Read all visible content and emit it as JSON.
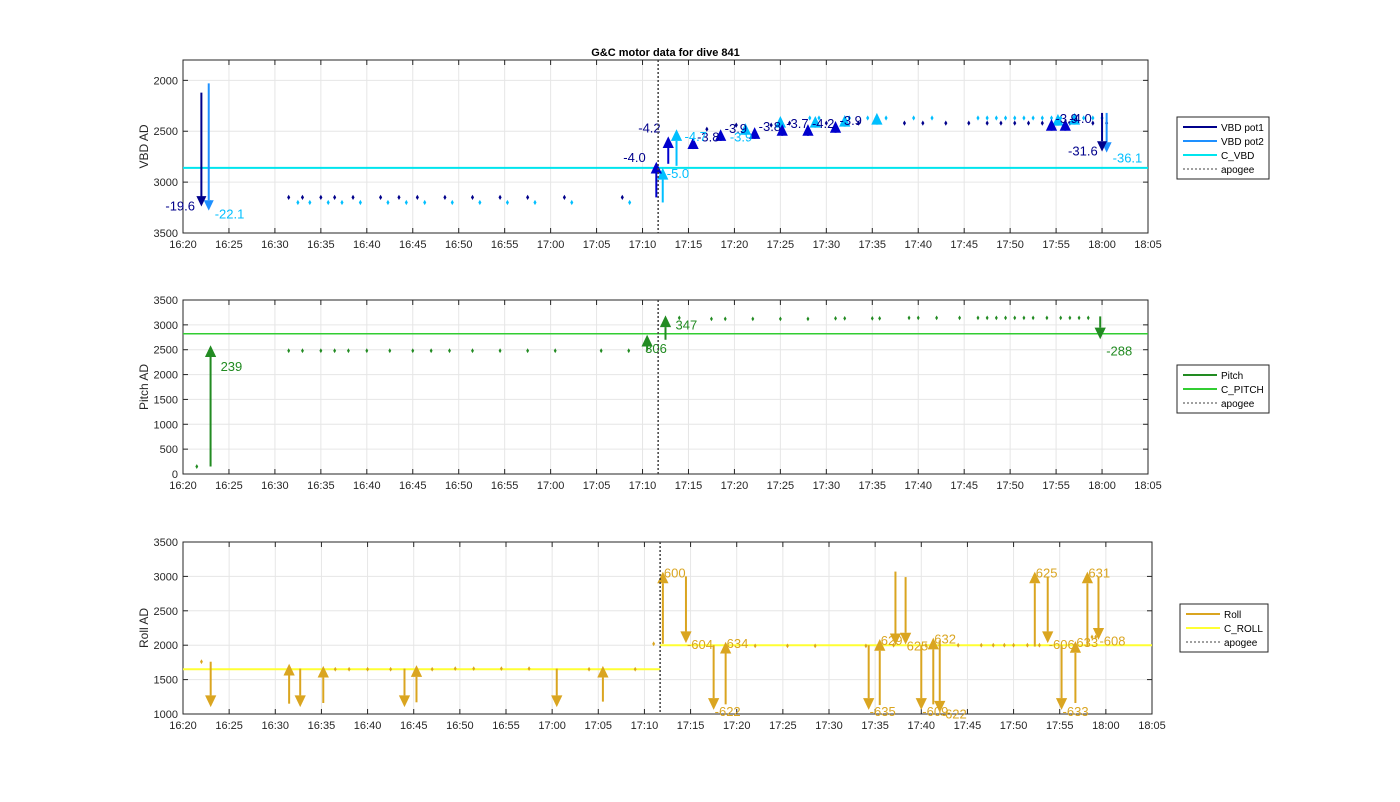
{
  "figure_title": "G&C motor data for dive 841",
  "x_ticks": [
    "16:20",
    "16:25",
    "16:30",
    "16:35",
    "16:40",
    "16:45",
    "16:50",
    "16:55",
    "17:00",
    "17:05",
    "17:10",
    "17:15",
    "17:20",
    "17:25",
    "17:30",
    "17:35",
    "17:40",
    "17:45",
    "17:50",
    "17:55",
    "18:00",
    "18:05"
  ],
  "apogee_time": "17:11.7",
  "colors": {
    "vbd_pot1": "#00008B",
    "vbd_pot2": "#1E90FF",
    "vbd_pot1_marker": "#0000CD",
    "vbd_pot2_marker": "#00BFFF",
    "c_vbd": "#00E5EE",
    "vbd_text1": "#00008B",
    "vbd_text2": "#00BFFF",
    "pitch": "#228B22",
    "c_pitch": "#32CD32",
    "roll": "#DAA520",
    "c_roll": "#FFFF33",
    "apogee": "#404040",
    "grid": "#e6e6e6"
  },
  "chart_data": [
    {
      "type": "line",
      "title": "G&C motor data for dive 841",
      "ylabel": "VBD AD",
      "ylim": [
        1800,
        3500
      ],
      "y_reversed": true,
      "y_ticks": [
        "2000",
        "2500",
        "3000",
        "3500"
      ],
      "legend": [
        "VBD pot1",
        "VBD pot2",
        "C_VBD",
        "apogee"
      ],
      "legend_placement": "outside-right",
      "grid": true,
      "c_vbd": 2860,
      "pot1_points": [
        [
          2.0,
          3150
        ],
        [
          11.5,
          3150
        ],
        [
          13.0,
          3150
        ],
        [
          15.0,
          3150
        ],
        [
          16.5,
          3150
        ],
        [
          18.5,
          3150
        ],
        [
          21.5,
          3150
        ],
        [
          23.5,
          3150
        ],
        [
          25.5,
          3150
        ],
        [
          28.5,
          3150
        ],
        [
          31.5,
          3150
        ],
        [
          34.5,
          3150
        ],
        [
          37.5,
          3150
        ],
        [
          41.5,
          3150
        ],
        [
          47.8,
          3150
        ],
        [
          57.0,
          2480
        ],
        [
          60.2,
          2440
        ],
        [
          64.0,
          2440
        ],
        [
          66.0,
          2420
        ],
        [
          70.0,
          2420
        ],
        [
          73.5,
          2420
        ],
        [
          78.5,
          2420
        ],
        [
          80.5,
          2420
        ],
        [
          83.0,
          2420
        ],
        [
          85.5,
          2420
        ],
        [
          87.5,
          2420
        ],
        [
          89.0,
          2420
        ],
        [
          90.5,
          2420
        ],
        [
          92.0,
          2420
        ],
        [
          93.5,
          2420
        ],
        [
          95.0,
          2420
        ],
        [
          96.5,
          2420
        ],
        [
          99.0,
          2420
        ],
        [
          100.5,
          2420
        ]
      ],
      "pot2_points": [
        [
          3.0,
          3200
        ],
        [
          12.5,
          3200
        ],
        [
          13.8,
          3200
        ],
        [
          15.8,
          3200
        ],
        [
          17.3,
          3200
        ],
        [
          19.3,
          3200
        ],
        [
          22.3,
          3200
        ],
        [
          24.3,
          3200
        ],
        [
          26.3,
          3200
        ],
        [
          29.3,
          3200
        ],
        [
          32.3,
          3200
        ],
        [
          35.3,
          3200
        ],
        [
          38.3,
          3200
        ],
        [
          42.3,
          3200
        ],
        [
          48.6,
          3200
        ],
        [
          68.2,
          2370
        ],
        [
          69.2,
          2370
        ],
        [
          72.5,
          2370
        ],
        [
          74.5,
          2370
        ],
        [
          76.5,
          2370
        ],
        [
          79.5,
          2370
        ],
        [
          81.5,
          2370
        ],
        [
          86.5,
          2370
        ],
        [
          87.5,
          2370
        ],
        [
          88.5,
          2370
        ],
        [
          89.5,
          2370
        ],
        [
          90.5,
          2370
        ],
        [
          91.5,
          2370
        ],
        [
          92.5,
          2370
        ],
        [
          93.5,
          2370
        ],
        [
          94.5,
          2370
        ],
        [
          95.5,
          2370
        ],
        [
          98.0,
          2370
        ],
        [
          99.0,
          2370
        ],
        [
          100.0,
          2370
        ]
      ],
      "pot1_moves": [
        {
          "t": 2.0,
          "from": 2120,
          "to": 3240,
          "label": "-19.6"
        },
        {
          "t": 51.5,
          "from": 3150,
          "to": 2800,
          "label": "-4.0"
        },
        {
          "t": 52.8,
          "from": 2820,
          "to": 2550,
          "label": "-4.2"
        },
        {
          "t": 55.5,
          "from": 2620,
          "to": 2560,
          "label": "-3.8"
        },
        {
          "t": 58.5,
          "from": 2540,
          "to": 2480,
          "label": "-3.9"
        },
        {
          "t": 62.2,
          "from": 2490,
          "to": 2460,
          "label": "-3.8"
        },
        {
          "t": 65.2,
          "from": 2470,
          "to": 2430,
          "label": "-3.7"
        },
        {
          "t": 68.0,
          "from": 2470,
          "to": 2430,
          "label": "-4.2"
        },
        {
          "t": 71.0,
          "from": 2440,
          "to": 2400,
          "label": "-3.9"
        },
        {
          "t": 94.5,
          "from": 2420,
          "to": 2380,
          "label": "-3.9"
        },
        {
          "t": 96.0,
          "from": 2420,
          "to": 2380,
          "label": "-4.0"
        },
        {
          "t": 100.0,
          "from": 2320,
          "to": 2700,
          "label": "-31.6"
        }
      ],
      "pot2_moves": [
        {
          "t": 2.8,
          "from": 2030,
          "to": 3280,
          "label": "-22.1"
        },
        {
          "t": 52.2,
          "from": 3200,
          "to": 2860,
          "label": "-5.0"
        },
        {
          "t": 53.7,
          "from": 2840,
          "to": 2480,
          "label": "-4.7"
        },
        {
          "t": 61.2,
          "from": 2460,
          "to": 2420,
          "label": ""
        },
        {
          "t": 65.0,
          "from": 2400,
          "to": 2350,
          "label": ""
        },
        {
          "t": 68.8,
          "from": 2400,
          "to": 2350,
          "label": ""
        },
        {
          "t": 72.0,
          "from": 2390,
          "to": 2340,
          "label": ""
        },
        {
          "t": 75.5,
          "from": 2380,
          "to": 2320,
          "label": ""
        },
        {
          "t": 95.2,
          "from": 2380,
          "to": 2330,
          "label": ""
        },
        {
          "t": 97.0,
          "from": 2380,
          "to": 2320,
          "label": ""
        },
        {
          "t": 100.5,
          "from": 2320,
          "to": 2710,
          "label": "-36.1"
        }
      ],
      "extra_labels": [
        {
          "t": 59.5,
          "v": 2540,
          "text": "-3.9",
          "series": "pot2"
        }
      ]
    },
    {
      "type": "line",
      "ylabel": "Pitch AD",
      "ylim": [
        0,
        3500
      ],
      "y_ticks": [
        "0",
        "500",
        "1000",
        "1500",
        "2000",
        "2500",
        "3000",
        "3500"
      ],
      "legend": [
        "Pitch",
        "C_PITCH",
        "apogee"
      ],
      "legend_placement": "outside-right",
      "grid": true,
      "c_pitch": 2820,
      "points": [
        [
          1.5,
          150
        ],
        [
          11.5,
          2480
        ],
        [
          13.0,
          2480
        ],
        [
          15.0,
          2480
        ],
        [
          16.5,
          2480
        ],
        [
          18.0,
          2480
        ],
        [
          20.0,
          2480
        ],
        [
          22.5,
          2480
        ],
        [
          25.0,
          2480
        ],
        [
          27.0,
          2480
        ],
        [
          29.0,
          2480
        ],
        [
          31.5,
          2480
        ],
        [
          34.5,
          2480
        ],
        [
          37.5,
          2480
        ],
        [
          40.5,
          2480
        ],
        [
          45.5,
          2480
        ],
        [
          48.5,
          2480
        ],
        [
          54.0,
          3140
        ],
        [
          57.5,
          3120
        ],
        [
          59.0,
          3120
        ],
        [
          62.0,
          3120
        ],
        [
          65.0,
          3120
        ],
        [
          68.0,
          3120
        ],
        [
          71.0,
          3130
        ],
        [
          72.0,
          3130
        ],
        [
          75.0,
          3130
        ],
        [
          75.8,
          3130
        ],
        [
          79.0,
          3140
        ],
        [
          80.0,
          3140
        ],
        [
          82.0,
          3140
        ],
        [
          84.5,
          3140
        ],
        [
          86.5,
          3140
        ],
        [
          87.5,
          3140
        ],
        [
          88.5,
          3140
        ],
        [
          89.5,
          3140
        ],
        [
          90.5,
          3140
        ],
        [
          91.5,
          3140
        ],
        [
          92.5,
          3140
        ],
        [
          94.0,
          3140
        ],
        [
          95.5,
          3140
        ],
        [
          96.5,
          3140
        ],
        [
          97.5,
          3140
        ],
        [
          98.5,
          3140
        ]
      ],
      "moves": [
        {
          "t": 3.0,
          "from": 150,
          "to": 2590,
          "label": "239"
        },
        {
          "t": 50.5,
          "from": 2480,
          "to": 2800,
          "label": "306"
        },
        {
          "t": 52.5,
          "from": 2700,
          "to": 3190,
          "label": "347"
        },
        {
          "t": 99.8,
          "from": 3170,
          "to": 2710,
          "label": "-288"
        }
      ]
    },
    {
      "type": "line",
      "ylabel": "Roll AD",
      "ylim": [
        1000,
        3500
      ],
      "y_ticks": [
        "1000",
        "1500",
        "2000",
        "2500",
        "3000",
        "3500"
      ],
      "legend": [
        "Roll",
        "C_ROLL",
        "apogee"
      ],
      "legend_placement": "outside-right",
      "grid": true,
      "c_roll_before": 1650,
      "c_roll_after": 2000,
      "points": [
        [
          2.0,
          1760
        ],
        [
          16.5,
          1650
        ],
        [
          18.0,
          1650
        ],
        [
          20.0,
          1650
        ],
        [
          22.5,
          1650
        ],
        [
          27.0,
          1650
        ],
        [
          29.5,
          1660
        ],
        [
          31.5,
          1660
        ],
        [
          34.5,
          1660
        ],
        [
          37.5,
          1660
        ],
        [
          44.0,
          1650
        ],
        [
          49.0,
          1650
        ],
        [
          51.0,
          2020
        ],
        [
          62.0,
          1990
        ],
        [
          65.5,
          1990
        ],
        [
          68.5,
          1990
        ],
        [
          74.0,
          1990
        ],
        [
          77.0,
          2000
        ],
        [
          80.5,
          2000
        ],
        [
          82.0,
          2000
        ],
        [
          84.0,
          2000
        ],
        [
          86.5,
          2000
        ],
        [
          87.8,
          2000
        ],
        [
          89.0,
          2000
        ],
        [
          90.0,
          2000
        ],
        [
          91.5,
          2000
        ],
        [
          92.8,
          2000
        ],
        [
          98.5,
          2120
        ],
        [
          98.9,
          2120
        ]
      ],
      "moves": [
        {
          "t": 3.0,
          "from": 1760,
          "to": 1100,
          "label": ""
        },
        {
          "t": 11.5,
          "from": 1150,
          "to": 1730,
          "label": ""
        },
        {
          "t": 12.7,
          "from": 1660,
          "to": 1100,
          "label": ""
        },
        {
          "t": 15.2,
          "from": 1160,
          "to": 1700,
          "label": ""
        },
        {
          "t": 24.0,
          "from": 1660,
          "to": 1100,
          "label": ""
        },
        {
          "t": 25.3,
          "from": 1170,
          "to": 1710,
          "label": ""
        },
        {
          "t": 40.5,
          "from": 1660,
          "to": 1100,
          "label": ""
        },
        {
          "t": 45.5,
          "from": 1180,
          "to": 1700,
          "label": ""
        },
        {
          "t": 52.0,
          "from": 2020,
          "to": 3070,
          "label": "600"
        },
        {
          "t": 54.5,
          "from": 3000,
          "to": 2030,
          "label": "-604"
        },
        {
          "t": 57.5,
          "from": 2000,
          "to": 1060,
          "label": "-622"
        },
        {
          "t": 58.8,
          "from": 1140,
          "to": 2050,
          "label": "634"
        },
        {
          "t": 74.3,
          "from": 2000,
          "to": 1060,
          "label": "-635"
        },
        {
          "t": 75.5,
          "from": 1130,
          "to": 2090,
          "label": "629"
        },
        {
          "t": 77.2,
          "from": 3070,
          "to": 2000,
          "label": ""
        },
        {
          "t": 78.3,
          "from": 2990,
          "to": 2010,
          "label": "625"
        },
        {
          "t": 80.0,
          "from": 2000,
          "to": 1060,
          "label": "-609"
        },
        {
          "t": 81.3,
          "from": 1140,
          "to": 2110,
          "label": "632"
        },
        {
          "t": 82.0,
          "from": 2070,
          "to": 1020,
          "label": "-622"
        },
        {
          "t": 92.3,
          "from": 1980,
          "to": 3070,
          "label": "625"
        },
        {
          "t": 93.7,
          "from": 2990,
          "to": 2030,
          "label": "-606"
        },
        {
          "t": 95.2,
          "from": 2000,
          "to": 1060,
          "label": "-633"
        },
        {
          "t": 96.7,
          "from": 1160,
          "to": 2060,
          "label": "633"
        },
        {
          "t": 98.0,
          "from": 1980,
          "to": 3070,
          "label": "631"
        },
        {
          "t": 99.2,
          "from": 2990,
          "to": 2080,
          "label": "-608"
        }
      ]
    }
  ]
}
